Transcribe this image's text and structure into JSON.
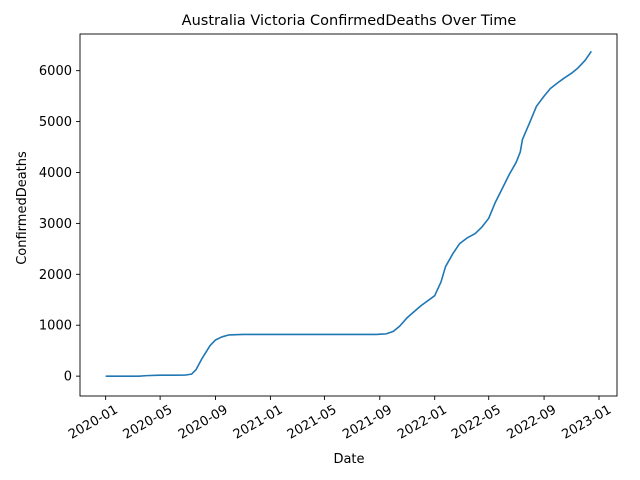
{
  "chart_data": {
    "type": "line",
    "title": "Australia Victoria ConfirmedDeaths Over Time",
    "xlabel": "Date",
    "ylabel": "ConfirmedDeaths",
    "x_ticks": [
      "2020-01",
      "2020-05",
      "2020-09",
      "2021-01",
      "2021-05",
      "2021-09",
      "2022-01",
      "2022-05",
      "2022-09",
      "2023-01"
    ],
    "y_ticks": [
      0,
      1000,
      2000,
      3000,
      4000,
      5000,
      6000
    ],
    "xlim": [
      "2019-11-05",
      "2023-02-10"
    ],
    "ylim": [
      -390,
      6720
    ],
    "grid": false,
    "legend": "none",
    "series": [
      {
        "color": "#1f77b4",
        "points": [
          [
            "2020-01-01",
            0
          ],
          [
            "2020-03-15",
            0
          ],
          [
            "2020-04-01",
            10
          ],
          [
            "2020-05-01",
            18
          ],
          [
            "2020-06-01",
            19
          ],
          [
            "2020-06-25",
            20
          ],
          [
            "2020-07-10",
            40
          ],
          [
            "2020-07-20",
            130
          ],
          [
            "2020-08-01",
            330
          ],
          [
            "2020-08-20",
            600
          ],
          [
            "2020-09-01",
            710
          ],
          [
            "2020-09-15",
            770
          ],
          [
            "2020-10-01",
            810
          ],
          [
            "2020-11-01",
            820
          ],
          [
            "2021-08-25",
            820
          ],
          [
            "2021-09-15",
            830
          ],
          [
            "2021-10-01",
            880
          ],
          [
            "2021-10-15",
            980
          ],
          [
            "2021-11-01",
            1150
          ],
          [
            "2021-12-01",
            1380
          ],
          [
            "2022-01-01",
            1580
          ],
          [
            "2022-01-15",
            1850
          ],
          [
            "2022-01-25",
            2150
          ],
          [
            "2022-02-10",
            2400
          ],
          [
            "2022-02-25",
            2600
          ],
          [
            "2022-03-15",
            2720
          ],
          [
            "2022-04-01",
            2800
          ],
          [
            "2022-04-15",
            2920
          ],
          [
            "2022-05-01",
            3100
          ],
          [
            "2022-05-15",
            3400
          ],
          [
            "2022-06-01",
            3700
          ],
          [
            "2022-06-15",
            3950
          ],
          [
            "2022-07-01",
            4200
          ],
          [
            "2022-07-10",
            4400
          ],
          [
            "2022-07-15",
            4650
          ],
          [
            "2022-08-01",
            5000
          ],
          [
            "2022-08-15",
            5300
          ],
          [
            "2022-09-01",
            5500
          ],
          [
            "2022-09-15",
            5650
          ],
          [
            "2022-10-01",
            5760
          ],
          [
            "2022-10-15",
            5850
          ],
          [
            "2022-11-01",
            5950
          ],
          [
            "2022-11-15",
            6050
          ],
          [
            "2022-12-01",
            6200
          ],
          [
            "2022-12-15",
            6380
          ]
        ]
      }
    ]
  }
}
